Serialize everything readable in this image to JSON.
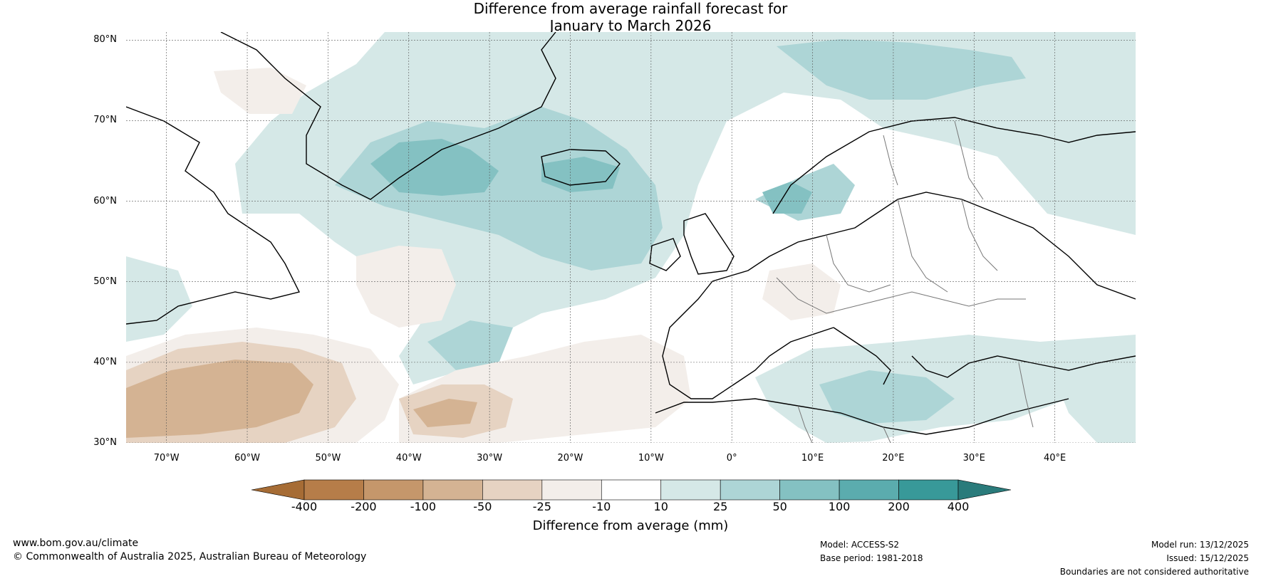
{
  "title": {
    "line1": "Difference from average rainfall forecast for",
    "line2": "January to March 2026"
  },
  "map": {
    "region": "North Atlantic and Europe",
    "lat_labels": [
      "80°N",
      "70°N",
      "60°N",
      "50°N",
      "40°N",
      "30°N"
    ],
    "lon_labels": [
      "70°W",
      "60°W",
      "50°W",
      "40°W",
      "30°W",
      "20°W",
      "10°W",
      "0°",
      "10°E",
      "20°E",
      "30°E",
      "40°E"
    ]
  },
  "colorbar": {
    "ticks": [
      "-400",
      "-200",
      "-100",
      "-50",
      "-25",
      "-10",
      "10",
      "25",
      "50",
      "100",
      "200",
      "400"
    ],
    "colors": [
      "#a66c35",
      "#b67d49",
      "#c5976b",
      "#d4b393",
      "#e6d3c2",
      "#f3eeea",
      "#ffffff",
      "#d5e8e7",
      "#add5d6",
      "#84c1c2",
      "#5bacae",
      "#389999",
      "#2a7b7b"
    ],
    "label": "Difference from average (mm)"
  },
  "footer": {
    "website": "www.bom.gov.au/climate",
    "copyright": "© Commonwealth of Australia 2025, Australian Bureau of Meteorology",
    "model": "Model: ACCESS-S2",
    "base_period": "Base period: 1981-2018",
    "model_run": "Model run: 13/12/2025",
    "issued": "Issued: 15/12/2025",
    "disclaimer": "Boundaries are not considered authoritative"
  }
}
